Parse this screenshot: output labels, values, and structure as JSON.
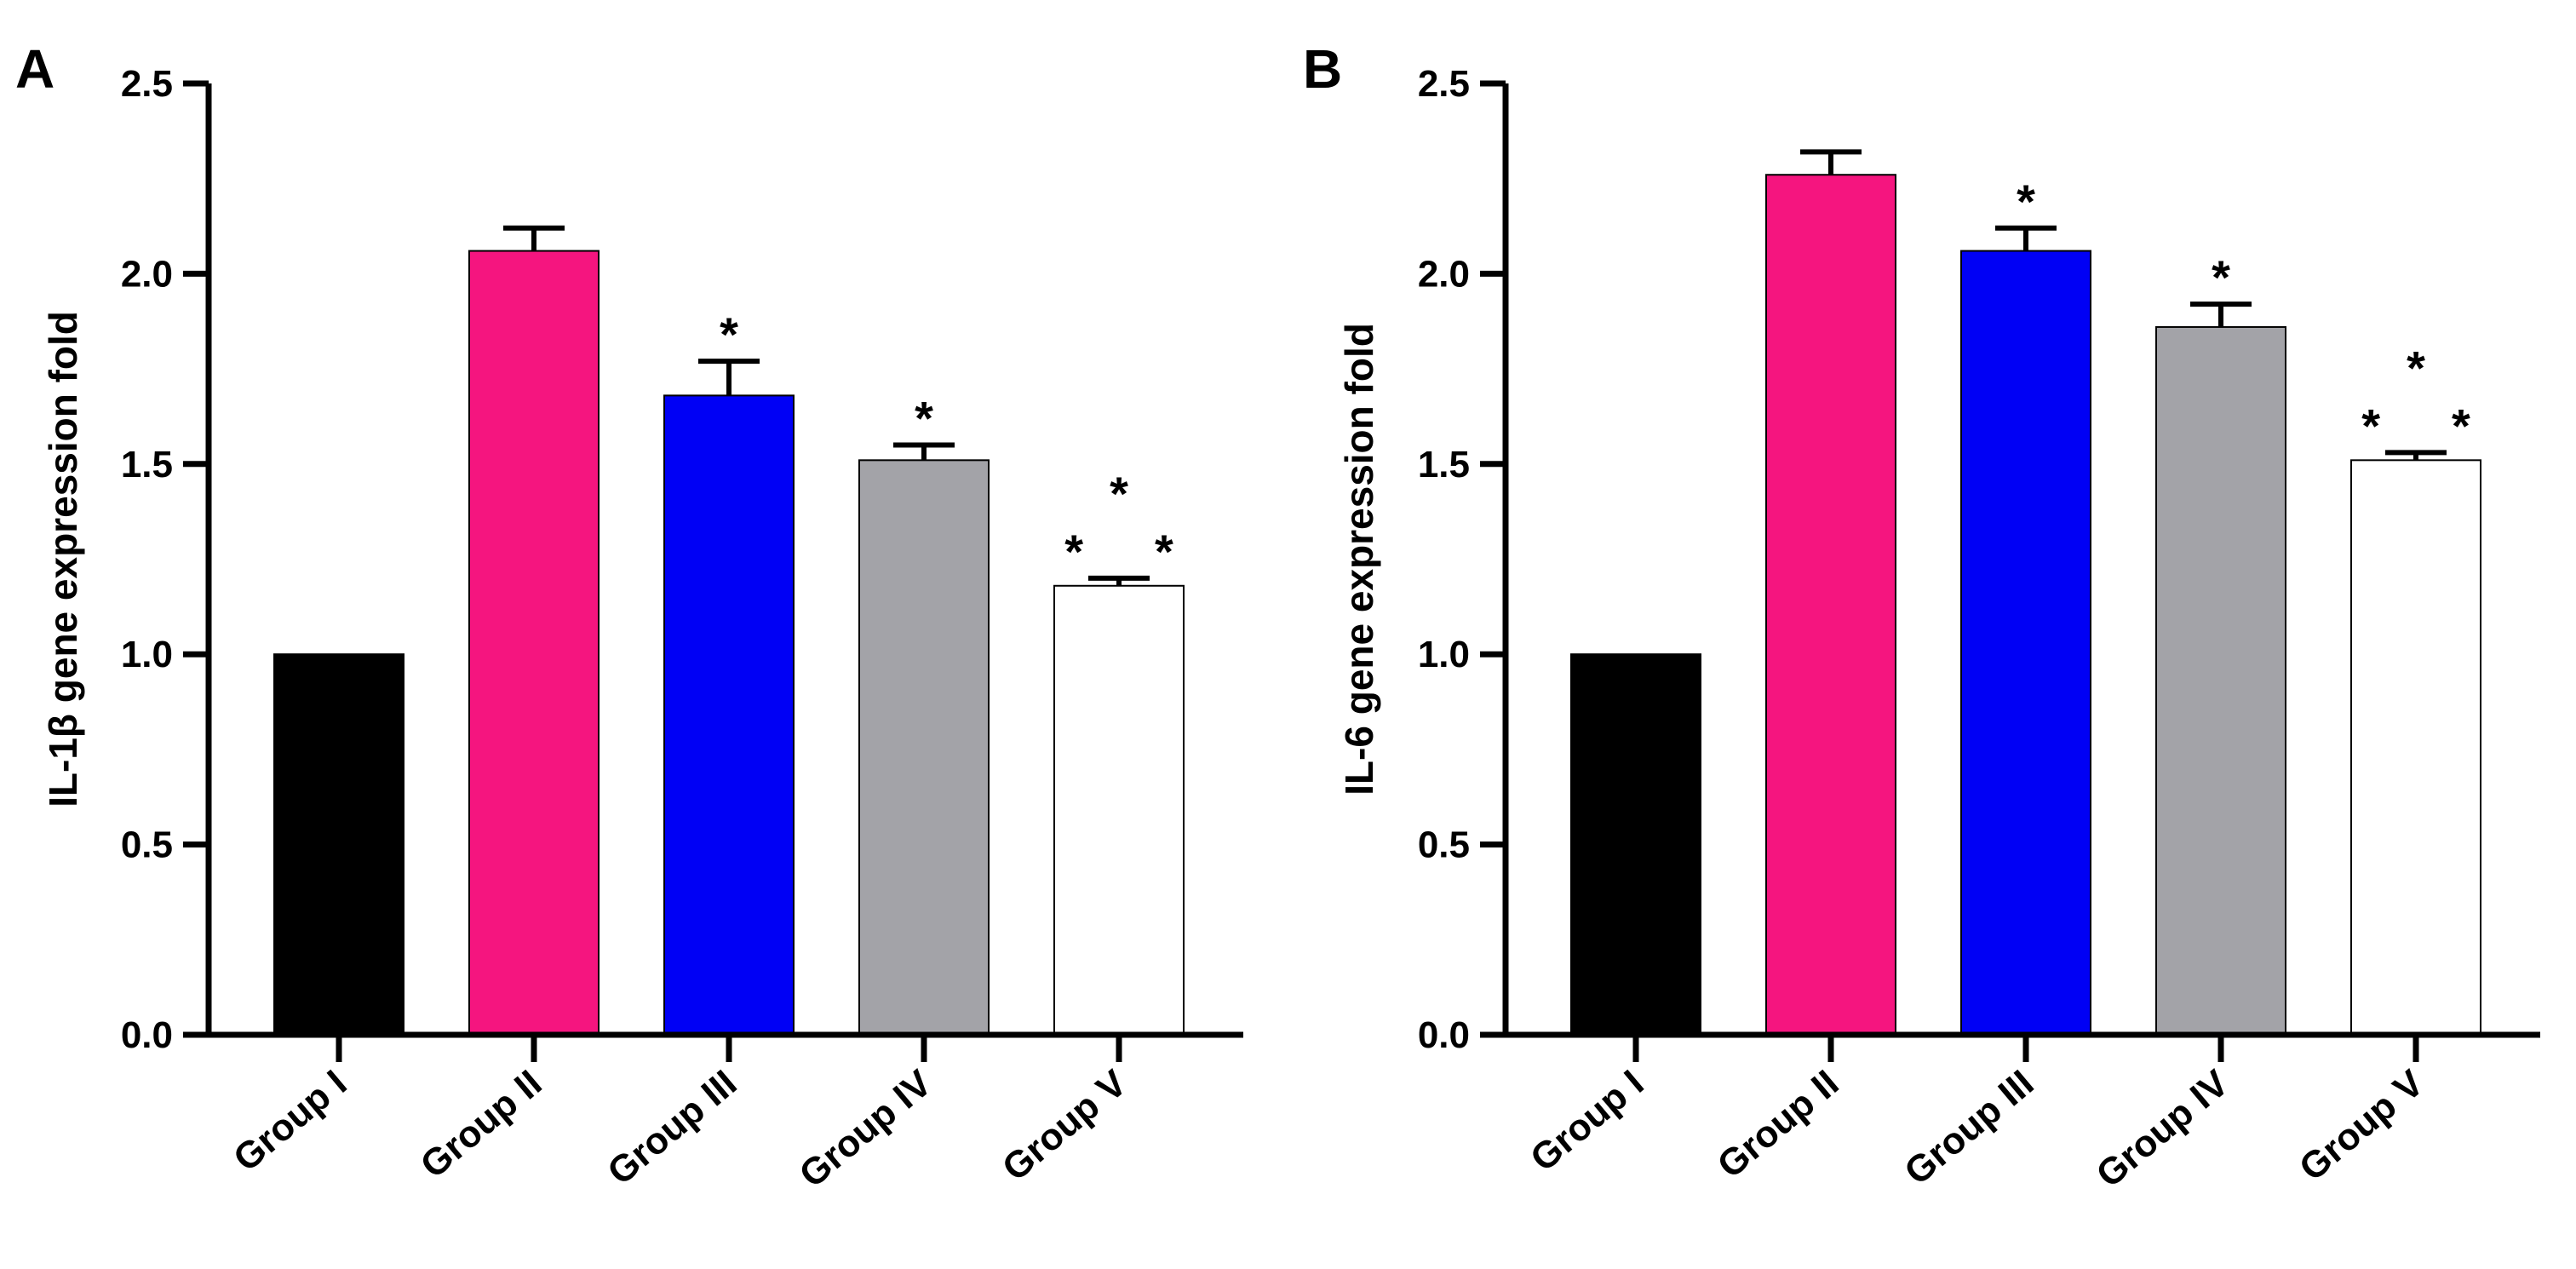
{
  "chart_data": [
    {
      "panel": "A",
      "type": "bar",
      "categories": [
        "Group I",
        "Group II",
        "Group III",
        "Group IV",
        "Group V"
      ],
      "values": [
        1.0,
        2.06,
        1.68,
        1.51,
        1.18
      ],
      "errors": [
        0.0,
        0.06,
        0.09,
        0.04,
        0.02
      ],
      "significance": [
        "",
        "",
        "*",
        "*",
        "*\n* *"
      ],
      "colors": [
        "#000000",
        "#f5157f",
        "#0000f5",
        "#a3a3a8",
        "#ffffff"
      ],
      "ylabel": "IL-1β gene expression fold",
      "xlabel": "",
      "ylim": [
        0,
        2.5
      ],
      "yticks": [
        0.0,
        0.5,
        1.0,
        1.5,
        2.0,
        2.5
      ],
      "ytick_labels": [
        "0.0",
        "0.5",
        "1.0",
        "1.5",
        "2.0",
        "2.5"
      ]
    },
    {
      "panel": "B",
      "type": "bar",
      "categories": [
        "Group I",
        "Group II",
        "Group III",
        "Group IV",
        "Group V"
      ],
      "values": [
        1.0,
        2.26,
        2.06,
        1.86,
        1.51
      ],
      "errors": [
        0.0,
        0.06,
        0.06,
        0.06,
        0.02
      ],
      "significance": [
        "",
        "",
        "*",
        "*",
        "*\n* *"
      ],
      "colors": [
        "#000000",
        "#f5157f",
        "#0000f5",
        "#a3a3a8",
        "#ffffff"
      ],
      "ylabel": "IL-6 gene expression fold",
      "xlabel": "",
      "ylim": [
        0,
        2.5
      ],
      "yticks": [
        0.0,
        0.5,
        1.0,
        1.5,
        2.0,
        2.5
      ],
      "ytick_labels": [
        "0.0",
        "0.5",
        "1.0",
        "1.5",
        "2.0",
        "2.5"
      ]
    }
  ]
}
